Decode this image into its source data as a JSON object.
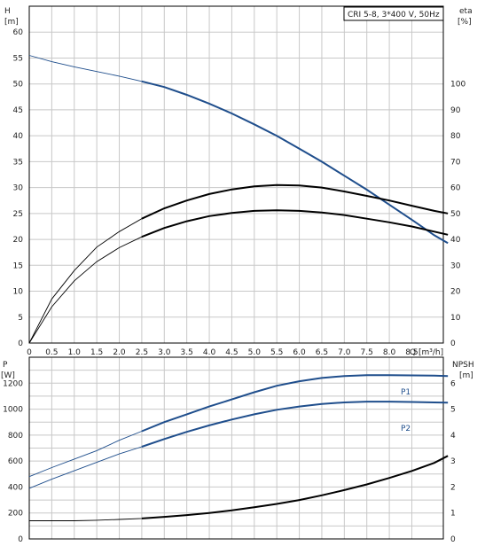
{
  "chart_data": [
    {
      "type": "line",
      "legend_text": "CRI 5-8, 3*400 V, 50Hz",
      "left_axis_label": {
        "line1": "H",
        "line2": "[m]"
      },
      "right_axis_label": {
        "line1": "eta",
        "line2": "[%]"
      },
      "x_axis_label": "Q [m³/h]",
      "x_ticks": [
        "0",
        "0.5",
        "1.0",
        "1.5",
        "2.0",
        "2.5",
        "3.0",
        "3.5",
        "4.0",
        "4.5",
        "5.0",
        "5.5",
        "6.0",
        "6.5",
        "7.0",
        "7.5",
        "8.0",
        "8.5"
      ],
      "y_ticks": [
        "0",
        "5",
        "10",
        "15",
        "20",
        "25",
        "30",
        "35",
        "40",
        "45",
        "50",
        "55",
        "60"
      ],
      "y2_ticks": [
        "0",
        "10",
        "20",
        "30",
        "40",
        "50",
        "60",
        "70",
        "80",
        "90",
        "100"
      ],
      "xlim": [
        0,
        9.2
      ],
      "ylim": [
        0,
        65
      ],
      "y2lim": [
        0,
        130
      ],
      "grid": true,
      "series": [
        {
          "axis": "left",
          "color": "#1f4e8c",
          "x": [
            0,
            0.5,
            1.0,
            1.5,
            2.0,
            2.5,
            3.0,
            3.5,
            4.0,
            4.5,
            5.0,
            5.5,
            6.0,
            6.5,
            7.0,
            7.5,
            8.0,
            8.5,
            9.0,
            9.3
          ],
          "y": [
            55.5,
            54.3,
            53.3,
            52.4,
            51.5,
            50.5,
            49.4,
            47.9,
            46.2,
            44.3,
            42.2,
            40.0,
            37.5,
            35.0,
            32.3,
            29.6,
            26.7,
            23.8,
            20.8,
            19.3
          ]
        },
        {
          "axis": "left",
          "color": "#000000",
          "x": [
            0,
            0.5,
            1.0,
            1.5,
            2.0,
            2.5,
            3.0,
            3.5,
            4.0,
            4.5,
            5.0,
            5.5,
            6.0,
            6.5,
            7.0,
            7.5,
            8.0,
            8.5,
            9.0,
            9.3
          ],
          "y": [
            0,
            7.0,
            12.0,
            15.7,
            18.4,
            20.5,
            22.2,
            23.5,
            24.5,
            25.1,
            25.5,
            25.6,
            25.5,
            25.2,
            24.7,
            24.0,
            23.3,
            22.5,
            21.5,
            20.9
          ]
        },
        {
          "axis": "right",
          "color": "#000000",
          "x": [
            0,
            0.5,
            1.0,
            1.5,
            2.0,
            2.5,
            3.0,
            3.5,
            4.0,
            4.5,
            5.0,
            5.5,
            6.0,
            6.5,
            7.0,
            7.5,
            8.0,
            8.5,
            9.0,
            9.3
          ],
          "y": [
            0,
            17,
            28,
            37,
            43,
            48,
            52,
            55,
            57.5,
            59.3,
            60.5,
            61.0,
            60.8,
            60.0,
            58.5,
            56.8,
            55.0,
            53.0,
            51.0,
            50
          ]
        }
      ]
    },
    {
      "type": "line",
      "left_axis_label": {
        "line1": "P",
        "line2": "[W]"
      },
      "right_axis_label": {
        "line1": "NPSH",
        "line2": "[m]"
      },
      "y_ticks": [
        "0",
        "200",
        "400",
        "600",
        "800",
        "1000",
        "1200"
      ],
      "y2_ticks": [
        "0",
        "1",
        "2",
        "3",
        "4",
        "5",
        "6"
      ],
      "xlim": [
        0,
        9.2
      ],
      "ylim": [
        0,
        1400
      ],
      "y2lim": [
        0,
        7
      ],
      "grid": true,
      "series": [
        {
          "name": "P1",
          "axis": "left",
          "color": "#1f4e8c",
          "x": [
            0,
            0.5,
            1.0,
            1.5,
            2.0,
            2.5,
            3.0,
            3.5,
            4.0,
            4.5,
            5.0,
            5.5,
            6.0,
            6.5,
            7.0,
            7.5,
            8.0,
            8.5,
            9.0,
            9.3
          ],
          "y": [
            480,
            550,
            615,
            680,
            760,
            830,
            900,
            960,
            1020,
            1075,
            1130,
            1180,
            1215,
            1240,
            1255,
            1262,
            1262,
            1260,
            1258,
            1255
          ]
        },
        {
          "name": "P2",
          "axis": "left",
          "color": "#1f4e8c",
          "x": [
            0,
            0.5,
            1.0,
            1.5,
            2.0,
            2.5,
            3.0,
            3.5,
            4.0,
            4.5,
            5.0,
            5.5,
            6.0,
            6.5,
            7.0,
            7.5,
            8.0,
            8.5,
            9.0,
            9.3
          ],
          "y": [
            390,
            460,
            525,
            590,
            655,
            710,
            770,
            825,
            875,
            920,
            960,
            995,
            1020,
            1040,
            1052,
            1058,
            1058,
            1055,
            1052,
            1050
          ]
        },
        {
          "axis": "right",
          "color": "#000000",
          "x": [
            0,
            0.5,
            1.0,
            1.5,
            2.0,
            2.5,
            3.0,
            3.5,
            4.0,
            4.5,
            5.0,
            5.5,
            6.0,
            6.5,
            7.0,
            7.5,
            8.0,
            8.5,
            9.0,
            9.3
          ],
          "y": [
            0.7,
            0.7,
            0.7,
            0.72,
            0.75,
            0.79,
            0.85,
            0.92,
            1.0,
            1.1,
            1.22,
            1.35,
            1.5,
            1.68,
            1.88,
            2.1,
            2.35,
            2.62,
            2.93,
            3.2
          ]
        }
      ]
    }
  ]
}
